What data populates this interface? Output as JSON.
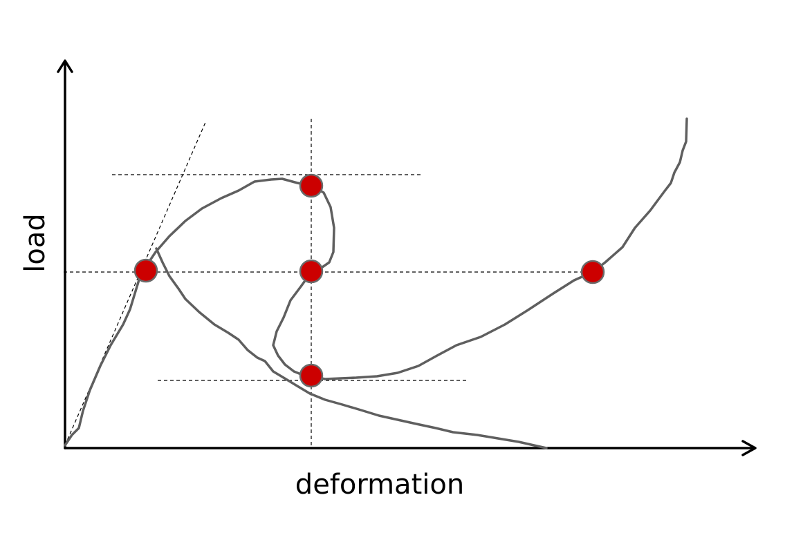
{
  "labels": {
    "x_axis": "deformation",
    "y_axis": "load"
  },
  "colors": {
    "axis": "#000000",
    "curve": "#5f5f5f",
    "marker_fill": "#cc0000",
    "marker_stroke": "#6a6a6a",
    "guide": "#000000"
  },
  "markers": [
    {
      "id": "marker-1"
    },
    {
      "id": "marker-2"
    },
    {
      "id": "marker-3"
    },
    {
      "id": "marker-4"
    },
    {
      "id": "marker-5"
    }
  ]
}
